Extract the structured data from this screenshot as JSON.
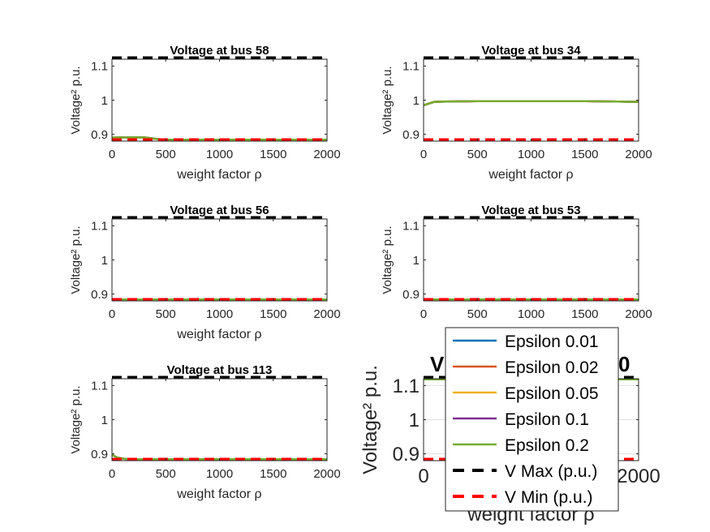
{
  "chart_data": [
    {
      "type": "line",
      "title": "Voltage at bus 58",
      "xlabel": "weight factor ρ",
      "ylabel": "Voltage² p.u.",
      "xlim": [
        0,
        2000
      ],
      "ylim": [
        0.88,
        1.12
      ],
      "xticks": [
        "0",
        "500",
        "1000",
        "1500",
        "2000"
      ],
      "yticks": [
        "0.9",
        "1",
        "1.1"
      ],
      "series": [
        {
          "name": "Epsilon 0.01",
          "color": "#0072BD",
          "x": [
            0,
            100,
            200,
            300,
            350,
            450,
            500,
            1000,
            1500,
            2000
          ],
          "y": [
            0.89,
            0.891,
            0.891,
            0.891,
            0.889,
            0.885,
            0.884,
            0.884,
            0.884,
            0.884
          ]
        },
        {
          "name": "Epsilon 0.02",
          "color": "#D95319",
          "x": [
            0,
            100,
            200,
            300,
            350,
            450,
            500,
            1000,
            1500,
            2000
          ],
          "y": [
            0.89,
            0.891,
            0.891,
            0.891,
            0.889,
            0.885,
            0.884,
            0.884,
            0.884,
            0.884
          ]
        },
        {
          "name": "Epsilon 0.05",
          "color": "#EDB120",
          "x": [
            0,
            100,
            200,
            300,
            350,
            450,
            500,
            1000,
            1500,
            2000
          ],
          "y": [
            0.89,
            0.891,
            0.891,
            0.891,
            0.889,
            0.885,
            0.884,
            0.884,
            0.884,
            0.884
          ]
        },
        {
          "name": "Epsilon 0.1",
          "color": "#7E2F8E",
          "x": [
            0,
            100,
            200,
            300,
            350,
            450,
            500,
            1000,
            1500,
            2000
          ],
          "y": [
            0.89,
            0.891,
            0.891,
            0.891,
            0.889,
            0.885,
            0.884,
            0.884,
            0.884,
            0.884
          ]
        },
        {
          "name": "Epsilon 0.2",
          "color": "#77AC30",
          "x": [
            0,
            100,
            200,
            300,
            350,
            450,
            500,
            1000,
            1500,
            2000
          ],
          "y": [
            0.89,
            0.891,
            0.891,
            0.891,
            0.889,
            0.885,
            0.884,
            0.884,
            0.884,
            0.884
          ]
        },
        {
          "name": "V Max (p.u.)",
          "color": "#000000",
          "dashed": true,
          "x": [
            0,
            2000
          ],
          "y": [
            1.1236,
            1.1236
          ]
        },
        {
          "name": "V Min (p.u.)",
          "color": "#FF0000",
          "dashed": true,
          "x": [
            0,
            2000
          ],
          "y": [
            0.8836,
            0.8836
          ]
        }
      ]
    },
    {
      "type": "line",
      "title": "Voltage at bus 34",
      "xlabel": "weight factor ρ",
      "ylabel": "Voltage² p.u.",
      "xlim": [
        0,
        2000
      ],
      "ylim": [
        0.88,
        1.12
      ],
      "xticks": [
        "0",
        "500",
        "1000",
        "1500",
        "2000"
      ],
      "yticks": [
        "0.9",
        "1",
        "1.1"
      ],
      "series": [
        {
          "name": "Epsilon 0.01",
          "color": "#0072BD",
          "x": [
            0,
            50,
            100,
            200,
            500,
            1000,
            1500,
            1800,
            2000
          ],
          "y": [
            0.985,
            0.99,
            0.995,
            0.996,
            0.997,
            0.997,
            0.997,
            0.996,
            0.995
          ]
        },
        {
          "name": "Epsilon 0.02",
          "color": "#D95319",
          "x": [
            0,
            50,
            100,
            200,
            500,
            1000,
            1500,
            1800,
            2000
          ],
          "y": [
            0.985,
            0.99,
            0.995,
            0.996,
            0.997,
            0.997,
            0.997,
            0.996,
            0.995
          ]
        },
        {
          "name": "Epsilon 0.05",
          "color": "#EDB120",
          "x": [
            0,
            50,
            100,
            200,
            500,
            1000,
            1500,
            1800,
            2000
          ],
          "y": [
            0.985,
            0.99,
            0.995,
            0.996,
            0.997,
            0.997,
            0.997,
            0.996,
            0.995
          ]
        },
        {
          "name": "Epsilon 0.1",
          "color": "#7E2F8E",
          "x": [
            0,
            50,
            100,
            200,
            500,
            1000,
            1500,
            1800,
            2000
          ],
          "y": [
            0.985,
            0.99,
            0.995,
            0.996,
            0.997,
            0.997,
            0.997,
            0.996,
            0.995
          ]
        },
        {
          "name": "Epsilon 0.2",
          "color": "#77AC30",
          "x": [
            0,
            50,
            100,
            200,
            500,
            1000,
            1500,
            1800,
            2000
          ],
          "y": [
            0.985,
            0.99,
            0.995,
            0.996,
            0.997,
            0.997,
            0.997,
            0.996,
            0.995
          ]
        },
        {
          "name": "V Max (p.u.)",
          "color": "#000000",
          "dashed": true,
          "x": [
            0,
            2000
          ],
          "y": [
            1.1236,
            1.1236
          ]
        },
        {
          "name": "V Min (p.u.)",
          "color": "#FF0000",
          "dashed": true,
          "x": [
            0,
            2000
          ],
          "y": [
            0.8836,
            0.8836
          ]
        }
      ]
    },
    {
      "type": "line",
      "title": "Voltage at bus 56",
      "xlabel": "weight factor ρ",
      "ylabel": "Voltage² p.u.",
      "xlim": [
        0,
        2000
      ],
      "ylim": [
        0.88,
        1.12
      ],
      "xticks": [
        "0",
        "500",
        "1000",
        "1500",
        "2000"
      ],
      "yticks": [
        "0.9",
        "1",
        "1.1"
      ],
      "series": [
        {
          "name": "Epsilon 0.01",
          "color": "#0072BD",
          "x": [
            0,
            2000
          ],
          "y": [
            0.884,
            0.884
          ]
        },
        {
          "name": "Epsilon 0.02",
          "color": "#D95319",
          "x": [
            0,
            2000
          ],
          "y": [
            0.884,
            0.884
          ]
        },
        {
          "name": "Epsilon 0.05",
          "color": "#EDB120",
          "x": [
            0,
            2000
          ],
          "y": [
            0.884,
            0.884
          ]
        },
        {
          "name": "Epsilon 0.1",
          "color": "#7E2F8E",
          "x": [
            0,
            2000
          ],
          "y": [
            0.884,
            0.884
          ]
        },
        {
          "name": "Epsilon 0.2",
          "color": "#77AC30",
          "x": [
            0,
            2000
          ],
          "y": [
            0.884,
            0.884
          ]
        },
        {
          "name": "V Max (p.u.)",
          "color": "#000000",
          "dashed": true,
          "x": [
            0,
            2000
          ],
          "y": [
            1.1236,
            1.1236
          ]
        },
        {
          "name": "V Min (p.u.)",
          "color": "#FF0000",
          "dashed": true,
          "x": [
            0,
            2000
          ],
          "y": [
            0.8836,
            0.8836
          ]
        }
      ]
    },
    {
      "type": "line",
      "title": "Voltage at bus 53",
      "xlabel": "weight factor ρ",
      "ylabel": "Voltage² p.u.",
      "xlim": [
        0,
        2000
      ],
      "ylim": [
        0.88,
        1.12
      ],
      "xticks": [
        "0",
        "500",
        "1000",
        "1500",
        "2000"
      ],
      "yticks": [
        "0.9",
        "1",
        "1.1"
      ],
      "series": [
        {
          "name": "Epsilon 0.01",
          "color": "#0072BD",
          "x": [
            0,
            2000
          ],
          "y": [
            0.884,
            0.884
          ]
        },
        {
          "name": "Epsilon 0.02",
          "color": "#D95319",
          "x": [
            0,
            2000
          ],
          "y": [
            0.884,
            0.884
          ]
        },
        {
          "name": "Epsilon 0.05",
          "color": "#EDB120",
          "x": [
            0,
            2000
          ],
          "y": [
            0.884,
            0.884
          ]
        },
        {
          "name": "Epsilon 0.1",
          "color": "#7E2F8E",
          "x": [
            0,
            2000
          ],
          "y": [
            0.884,
            0.884
          ]
        },
        {
          "name": "Epsilon 0.2",
          "color": "#77AC30",
          "x": [
            0,
            2000
          ],
          "y": [
            0.884,
            0.884
          ]
        },
        {
          "name": "V Max (p.u.)",
          "color": "#000000",
          "dashed": true,
          "x": [
            0,
            2000
          ],
          "y": [
            1.1236,
            1.1236
          ]
        },
        {
          "name": "V Min (p.u.)",
          "color": "#FF0000",
          "dashed": true,
          "x": [
            0,
            2000
          ],
          "y": [
            0.8836,
            0.8836
          ]
        }
      ]
    },
    {
      "type": "line",
      "title": "Voltage at bus 113",
      "xlabel": "weight factor ρ",
      "ylabel": "Voltage² p.u.",
      "xlim": [
        0,
        2000
      ],
      "ylim": [
        0.88,
        1.12
      ],
      "xticks": [
        "0",
        "500",
        "1000",
        "1500",
        "2000"
      ],
      "yticks": [
        "0.9",
        "1",
        "1.1"
      ],
      "series": [
        {
          "name": "Epsilon 0.01",
          "color": "#0072BD",
          "x": [
            0,
            50,
            100,
            150,
            300,
            2000
          ],
          "y": [
            0.897,
            0.889,
            0.886,
            0.884,
            0.884,
            0.884
          ]
        },
        {
          "name": "Epsilon 0.02",
          "color": "#D95319",
          "x": [
            0,
            50,
            100,
            150,
            300,
            2000
          ],
          "y": [
            0.897,
            0.889,
            0.886,
            0.884,
            0.884,
            0.884
          ]
        },
        {
          "name": "Epsilon 0.05",
          "color": "#EDB120",
          "x": [
            0,
            50,
            100,
            150,
            300,
            2000
          ],
          "y": [
            0.897,
            0.889,
            0.886,
            0.884,
            0.884,
            0.884
          ]
        },
        {
          "name": "Epsilon 0.1",
          "color": "#7E2F8E",
          "x": [
            0,
            50,
            100,
            150,
            300,
            2000
          ],
          "y": [
            0.897,
            0.889,
            0.886,
            0.884,
            0.884,
            0.884
          ]
        },
        {
          "name": "Epsilon 0.2",
          "color": "#77AC30",
          "x": [
            0,
            50,
            100,
            150,
            300,
            2000
          ],
          "y": [
            0.897,
            0.889,
            0.886,
            0.884,
            0.884,
            0.884
          ]
        },
        {
          "name": "V Max (p.u.)",
          "color": "#000000",
          "dashed": true,
          "x": [
            0,
            2000
          ],
          "y": [
            1.1236,
            1.1236
          ]
        },
        {
          "name": "V Min (p.u.)",
          "color": "#FF0000",
          "dashed": true,
          "x": [
            0,
            2000
          ],
          "y": [
            0.8836,
            0.8836
          ]
        }
      ]
    },
    {
      "type": "line",
      "title": "V",
      "title_tail": "0",
      "xlabel": "weight factor ρ",
      "ylabel": "Voltage² p.u.",
      "xlim": [
        0,
        2000
      ],
      "ylim": [
        0.88,
        1.12
      ],
      "xticks": [
        "0",
        "2000"
      ],
      "yticks": [
        "0.9",
        "1",
        "1.1"
      ],
      "grid": true,
      "series": [
        {
          "name": "Epsilon 0.2",
          "color": "#77AC30",
          "x": [
            0,
            2000
          ],
          "y": [
            1.118,
            1.118
          ]
        },
        {
          "name": "V Max (p.u.)",
          "color": "#000000",
          "dashed": true,
          "x": [
            0,
            2000
          ],
          "y": [
            1.1236,
            1.1236
          ]
        },
        {
          "name": "V Min (p.u.)",
          "color": "#FF0000",
          "dashed": true,
          "x": [
            0,
            2000
          ],
          "y": [
            0.8836,
            0.8836
          ]
        }
      ]
    }
  ],
  "legend": {
    "placement": "bottom-right",
    "entries": [
      {
        "label": "Epsilon 0.01",
        "color": "#0072BD",
        "dashed": false
      },
      {
        "label": "Epsilon 0.02",
        "color": "#D95319",
        "dashed": false
      },
      {
        "label": "Epsilon 0.05",
        "color": "#EDB120",
        "dashed": false
      },
      {
        "label": "Epsilon 0.1",
        "color": "#7E2F8E",
        "dashed": false
      },
      {
        "label": "Epsilon 0.2",
        "color": "#77AC30",
        "dashed": false
      },
      {
        "label": "V Max (p.u.)",
        "color": "#000000",
        "dashed": true
      },
      {
        "label": "V Min (p.u.)",
        "color": "#FF0000",
        "dashed": true
      }
    ]
  }
}
